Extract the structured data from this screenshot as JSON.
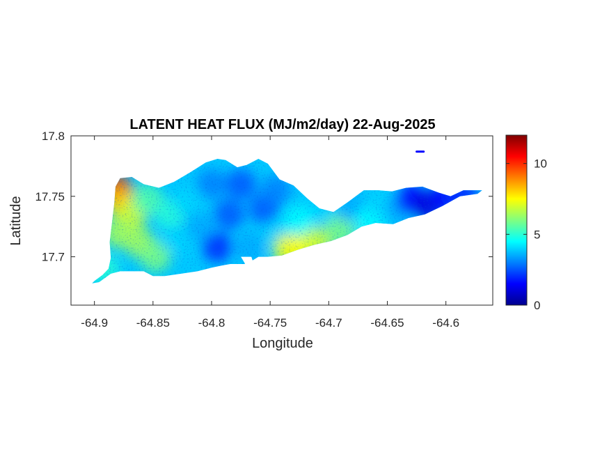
{
  "chart_data": {
    "type": "heatmap",
    "title": "LATENT HEAT FLUX (MJ/m2/day) 22-Aug-2025",
    "xlabel": "Longitude",
    "ylabel": "Latitude",
    "xlim": [
      -64.92,
      -64.56
    ],
    "ylim": [
      17.66,
      17.8
    ],
    "xticks": [
      -64.9,
      -64.85,
      -64.8,
      -64.75,
      -64.7,
      -64.65,
      -64.6
    ],
    "xtick_labels": [
      "-64.9",
      "-64.85",
      "-64.8",
      "-64.75",
      "-64.7",
      "-64.65",
      "-64.6"
    ],
    "yticks": [
      17.7,
      17.75,
      17.8
    ],
    "ytick_labels": [
      "17.7",
      "17.75",
      "17.8"
    ],
    "grid": false,
    "colormap": "jet",
    "colorbar": {
      "location": "right",
      "range": [
        0,
        12
      ],
      "ticks": [
        0,
        5,
        10
      ],
      "tick_labels": [
        "0",
        "5",
        "10"
      ],
      "colors": [
        "#00008f",
        "#0000ff",
        "#0080ff",
        "#00ffff",
        "#80ff80",
        "#ffff00",
        "#ff8000",
        "#ff0000",
        "#800000"
      ]
    },
    "island_outline": [
      [
        -64.9,
        17.68
      ],
      [
        -64.893,
        17.685
      ],
      [
        -64.888,
        17.69
      ],
      [
        -64.886,
        17.699
      ],
      [
        -64.887,
        17.712
      ],
      [
        -64.885,
        17.728
      ],
      [
        -64.883,
        17.745
      ],
      [
        -64.882,
        17.758
      ],
      [
        -64.878,
        17.765
      ],
      [
        -64.868,
        17.766
      ],
      [
        -64.858,
        17.76
      ],
      [
        -64.845,
        17.757
      ],
      [
        -64.832,
        17.762
      ],
      [
        -64.818,
        17.77
      ],
      [
        -64.805,
        17.778
      ],
      [
        -64.795,
        17.781
      ],
      [
        -64.788,
        17.78
      ],
      [
        -64.778,
        17.774
      ],
      [
        -64.77,
        17.776
      ],
      [
        -64.76,
        17.781
      ],
      [
        -64.752,
        17.777
      ],
      [
        -64.742,
        17.764
      ],
      [
        -64.73,
        17.759
      ],
      [
        -64.718,
        17.748
      ],
      [
        -64.708,
        17.74
      ],
      [
        -64.696,
        17.737
      ],
      [
        -64.684,
        17.745
      ],
      [
        -64.67,
        17.755
      ],
      [
        -64.658,
        17.755
      ],
      [
        -64.646,
        17.754
      ],
      [
        -64.634,
        17.757
      ],
      [
        -64.62,
        17.758
      ],
      [
        -64.606,
        17.753
      ],
      [
        -64.596,
        17.75
      ],
      [
        -64.585,
        17.755
      ],
      [
        -64.569,
        17.755
      ],
      [
        -64.573,
        17.752
      ],
      [
        -64.588,
        17.75
      ],
      [
        -64.603,
        17.742
      ],
      [
        -64.618,
        17.735
      ],
      [
        -64.632,
        17.732
      ],
      [
        -64.645,
        17.727
      ],
      [
        -64.66,
        17.728
      ],
      [
        -64.672,
        17.725
      ],
      [
        -64.684,
        17.718
      ],
      [
        -64.698,
        17.713
      ],
      [
        -64.712,
        17.71
      ],
      [
        -64.726,
        17.706
      ],
      [
        -64.74,
        17.701
      ],
      [
        -64.752,
        17.7
      ],
      [
        -64.76,
        17.7
      ],
      [
        -64.765,
        17.697
      ],
      [
        -64.772,
        17.694
      ],
      [
        -64.778,
        17.694
      ],
      [
        -64.784,
        17.694
      ],
      [
        -64.79,
        17.693
      ],
      [
        -64.8,
        17.691
      ],
      [
        -64.812,
        17.688
      ],
      [
        -64.826,
        17.686
      ],
      [
        -64.84,
        17.684
      ],
      [
        -64.85,
        17.684
      ],
      [
        -64.858,
        17.688
      ],
      [
        -64.868,
        17.688
      ],
      [
        -64.878,
        17.688
      ],
      [
        -64.886,
        17.686
      ],
      [
        -64.896,
        17.679
      ],
      [
        -64.902,
        17.678
      ]
    ],
    "notch_outline": [
      [
        -64.775,
        17.7
      ],
      [
        -64.77,
        17.692
      ],
      [
        -64.766,
        17.686
      ],
      [
        -64.762,
        17.688
      ],
      [
        -64.766,
        17.7
      ]
    ],
    "islet": [
      [
        -64.625,
        17.787
      ],
      [
        -64.619,
        17.787
      ]
    ],
    "regions": [
      {
        "lon": -64.88,
        "lat": 17.755,
        "value": 10.5
      },
      {
        "lon": -64.878,
        "lat": 17.745,
        "value": 8.0
      },
      {
        "lon": -64.868,
        "lat": 17.735,
        "value": 7.0
      },
      {
        "lon": -64.88,
        "lat": 17.72,
        "value": 6.5
      },
      {
        "lon": -64.862,
        "lat": 17.712,
        "value": 6.5
      },
      {
        "lon": -64.848,
        "lat": 17.7,
        "value": 6.0
      },
      {
        "lon": -64.892,
        "lat": 17.69,
        "value": 5.0
      },
      {
        "lon": -64.855,
        "lat": 17.748,
        "value": 5.5
      },
      {
        "lon": -64.835,
        "lat": 17.735,
        "value": 5.0
      },
      {
        "lon": -64.83,
        "lat": 17.715,
        "value": 4.0
      },
      {
        "lon": -64.82,
        "lat": 17.745,
        "value": 4.0
      },
      {
        "lon": -64.81,
        "lat": 17.725,
        "value": 3.5
      },
      {
        "lon": -64.8,
        "lat": 17.76,
        "value": 3.0
      },
      {
        "lon": -64.795,
        "lat": 17.708,
        "value": 2.0
      },
      {
        "lon": -64.785,
        "lat": 17.735,
        "value": 2.5
      },
      {
        "lon": -64.775,
        "lat": 17.76,
        "value": 2.5
      },
      {
        "lon": -64.768,
        "lat": 17.708,
        "value": 3.5
      },
      {
        "lon": -64.755,
        "lat": 17.74,
        "value": 2.5
      },
      {
        "lon": -64.745,
        "lat": 17.755,
        "value": 3.0
      },
      {
        "lon": -64.74,
        "lat": 17.72,
        "value": 4.0
      },
      {
        "lon": -64.735,
        "lat": 17.706,
        "value": 7.5
      },
      {
        "lon": -64.722,
        "lat": 17.708,
        "value": 7.5
      },
      {
        "lon": -64.725,
        "lat": 17.73,
        "value": 4.5
      },
      {
        "lon": -64.71,
        "lat": 17.712,
        "value": 7.0
      },
      {
        "lon": -64.705,
        "lat": 17.74,
        "value": 4.0
      },
      {
        "lon": -64.69,
        "lat": 17.722,
        "value": 6.0
      },
      {
        "lon": -64.68,
        "lat": 17.74,
        "value": 3.5
      },
      {
        "lon": -64.665,
        "lat": 17.73,
        "value": 4.5
      },
      {
        "lon": -64.655,
        "lat": 17.745,
        "value": 4.0
      },
      {
        "lon": -64.64,
        "lat": 17.74,
        "value": 3.5
      },
      {
        "lon": -64.63,
        "lat": 17.748,
        "value": 1.5
      },
      {
        "lon": -64.615,
        "lat": 17.742,
        "value": 1.0
      },
      {
        "lon": -64.6,
        "lat": 17.75,
        "value": 1.5
      },
      {
        "lon": -64.585,
        "lat": 17.752,
        "value": 2.0
      },
      {
        "lon": -64.622,
        "lat": 17.787,
        "value": 1.0
      }
    ]
  }
}
